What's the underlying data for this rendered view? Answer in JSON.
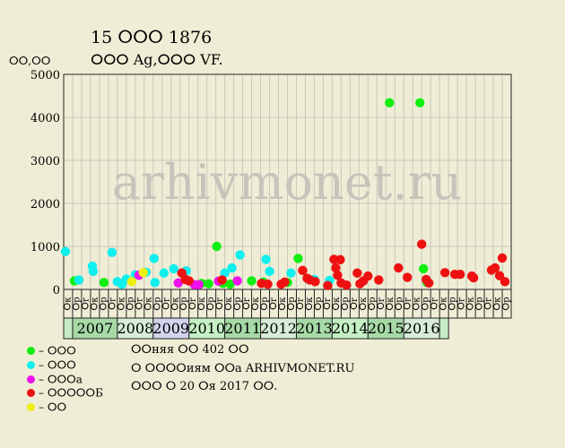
{
  "header": {
    "title": "15 ⵔⵔⵔ 1876",
    "subtitle": "ⵔⵔⵔ Ag,ⵔⵔⵔ VF.",
    "unit": "ⵔⵔ,ⵔⵔ"
  },
  "watermark": "arhivmonet.ru",
  "legend": [
    {
      "label": "– ⵔⵔⵔ",
      "color": "#11ee11"
    },
    {
      "label": "– ⵔⵔⵔ",
      "color": "#11eeee"
    },
    {
      "label": "– ⵔⵔⵔa",
      "color": "#ee11ee"
    },
    {
      "label": "– ⵔⵔⵔⵔⵔБ",
      "color": "#ee1111"
    },
    {
      "label": "– ⵔⵔ",
      "color": "#eeee11"
    }
  ],
  "notes": [
    "ⵔⵔняя ⵔⵔ 402 ⵔⵔ",
    "ⵔ ⵔⵔⵔⵔиям ⵔⵔa ARHIVMONET.RU",
    "ⵔⵔⵔ ⵔ 20 ⵔя 2017 ⵔⵔ."
  ],
  "chart_data": {
    "type": "scatter",
    "ylim": [
      0,
      5000
    ],
    "yticks": [
      0,
      1000,
      2000,
      3000,
      4000,
      5000
    ],
    "grid": true,
    "quarter_labels": [
      "ⵔк",
      "ⵔр",
      "ⵔr",
      "ⵔк",
      "ⵔр",
      "ⵔr",
      "ⵔк",
      "ⵔр",
      "ⵔr",
      "ⵔк",
      "ⵔр",
      "ⵔr",
      "ⵔк",
      "ⵔр",
      "ⵔr",
      "ⵔк",
      "ⵔр",
      "ⵔr",
      "ⵔк",
      "ⵔр",
      "ⵔr",
      "ⵔк",
      "ⵔр",
      "ⵔr",
      "ⵔк",
      "ⵔр",
      "ⵔr",
      "ⵔк",
      "ⵔр",
      "ⵔr",
      "ⵔк",
      "ⵔр",
      "ⵔr",
      "ⵔк",
      "ⵔр",
      "ⵔr",
      "ⵔк",
      "ⵔр",
      "ⵔr",
      "ⵔк",
      "ⵔр",
      "ⵔr",
      "ⵔк",
      "ⵔр",
      "ⵔr",
      "ⵔк",
      "ⵔр",
      "ⵔr",
      "ⵔк",
      "ⵔр"
    ],
    "years": [
      {
        "label": "",
        "start": 0,
        "span": 1,
        "color": "#c5ecc5"
      },
      {
        "label": "2007",
        "start": 1,
        "span": 5,
        "color": "#a6d9a6"
      },
      {
        "label": "2008",
        "start": 6,
        "span": 4,
        "color": "#d8ecd8"
      },
      {
        "label": "2009",
        "start": 10,
        "span": 4,
        "color": "#d3d3ee"
      },
      {
        "label": "2010",
        "start": 14,
        "span": 4,
        "color": "#c5f0c5"
      },
      {
        "label": "2011",
        "start": 18,
        "span": 4,
        "color": "#a6d9a6"
      },
      {
        "label": "2012",
        "start": 22,
        "span": 4,
        "color": "#d8ecd8"
      },
      {
        "label": "2013",
        "start": 26,
        "span": 4,
        "color": "#a6d9a6"
      },
      {
        "label": "2014",
        "start": 30,
        "span": 4,
        "color": "#c5f0c5"
      },
      {
        "label": "2015",
        "start": 34,
        "span": 4,
        "color": "#a6d9a6"
      },
      {
        "label": "2016",
        "start": 38,
        "span": 4,
        "color": "#d8ecd8"
      },
      {
        "label": "",
        "start": 42,
        "span": 1,
        "color": "#c5ecc5"
      }
    ],
    "series": [
      {
        "color": "#11ee11",
        "points": [
          [
            1.2,
            200
          ],
          [
            4.5,
            160
          ],
          [
            15.4,
            140
          ],
          [
            16.2,
            130
          ],
          [
            17.1,
            1000
          ],
          [
            17.8,
            140
          ],
          [
            18.6,
            120
          ],
          [
            21.0,
            200
          ],
          [
            22.3,
            170
          ],
          [
            25.0,
            160
          ],
          [
            26.2,
            720
          ],
          [
            36.4,
            4340
          ],
          [
            39.8,
            4340
          ],
          [
            40.2,
            480
          ],
          [
            40.6,
            160
          ]
        ]
      },
      {
        "color": "#11eeee",
        "points": [
          [
            0.2,
            880
          ],
          [
            1.7,
            220
          ],
          [
            3.2,
            540
          ],
          [
            3.3,
            420
          ],
          [
            5.4,
            860
          ],
          [
            6.0,
            180
          ],
          [
            6.5,
            120
          ],
          [
            7.0,
            240
          ],
          [
            8.0,
            340
          ],
          [
            9.2,
            400
          ],
          [
            10.1,
            720
          ],
          [
            10.2,
            160
          ],
          [
            11.2,
            380
          ],
          [
            12.3,
            480
          ],
          [
            13.7,
            430
          ],
          [
            18.0,
            380
          ],
          [
            18.8,
            500
          ],
          [
            19.7,
            800
          ],
          [
            22.6,
            700
          ],
          [
            23.0,
            420
          ],
          [
            25.4,
            380
          ],
          [
            28.0,
            230
          ],
          [
            29.7,
            210
          ]
        ]
      },
      {
        "color": "#ee11ee",
        "points": [
          [
            8.4,
            330
          ],
          [
            12.8,
            150
          ],
          [
            14.6,
            110
          ],
          [
            15.1,
            110
          ],
          [
            17.3,
            190
          ],
          [
            19.4,
            200
          ]
        ]
      },
      {
        "color": "#ee1111",
        "points": [
          [
            13.2,
            380
          ],
          [
            13.6,
            230
          ],
          [
            14.0,
            200
          ],
          [
            17.7,
            220
          ],
          [
            22.1,
            140
          ],
          [
            22.8,
            120
          ],
          [
            24.3,
            120
          ],
          [
            24.7,
            170
          ],
          [
            26.7,
            440
          ],
          [
            27.2,
            260
          ],
          [
            27.5,
            220
          ],
          [
            28.1,
            180
          ],
          [
            29.5,
            90
          ],
          [
            30.2,
            700
          ],
          [
            30.4,
            500
          ],
          [
            30.6,
            330
          ],
          [
            30.9,
            690
          ],
          [
            31.0,
            150
          ],
          [
            31.6,
            100
          ],
          [
            32.8,
            380
          ],
          [
            33.1,
            130
          ],
          [
            33.5,
            200
          ],
          [
            34.0,
            310
          ],
          [
            35.2,
            220
          ],
          [
            37.4,
            500
          ],
          [
            38.4,
            280
          ],
          [
            40.0,
            1050
          ],
          [
            40.5,
            230
          ],
          [
            40.8,
            150
          ],
          [
            42.6,
            390
          ],
          [
            43.7,
            350
          ],
          [
            44.3,
            350
          ],
          [
            45.6,
            310
          ],
          [
            45.8,
            270
          ],
          [
            47.8,
            450
          ],
          [
            48.2,
            500
          ],
          [
            48.7,
            320
          ],
          [
            49.0,
            730
          ],
          [
            49.3,
            180
          ]
        ]
      },
      {
        "color": "#eeee11",
        "points": [
          [
            7.6,
            180
          ],
          [
            8.9,
            390
          ]
        ]
      }
    ]
  }
}
